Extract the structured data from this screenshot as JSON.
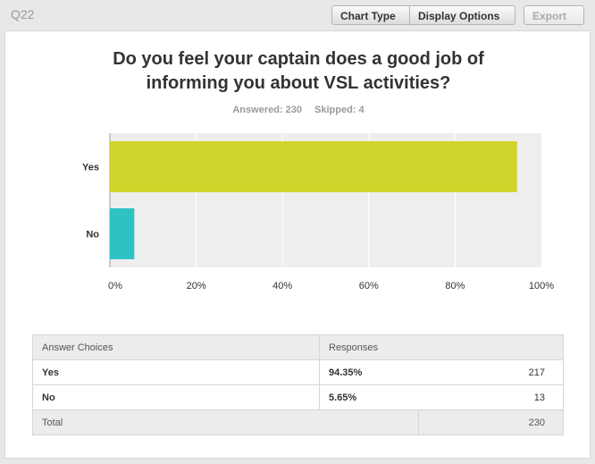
{
  "header": {
    "question_id": "Q22",
    "chart_type_label": "Chart Type",
    "display_options_label": "Display Options",
    "export_label": "Export"
  },
  "question": {
    "title_line1": "Do you feel your captain does a good job of",
    "title_line2": "informing you about VSL activities?",
    "answered": "Answered: 230",
    "skipped": "Skipped: 4"
  },
  "colors": {
    "yes": "#cfd52a",
    "no": "#2fc2c3",
    "plot_bg": "#eeeeee",
    "grid": "#ffffff"
  },
  "chart_data": {
    "type": "bar",
    "orientation": "horizontal",
    "categories": [
      "Yes",
      "No"
    ],
    "values": [
      94.35,
      5.65
    ],
    "xlim": [
      0,
      100
    ],
    "x_ticks": [
      "0%",
      "20%",
      "40%",
      "60%",
      "80%",
      "100%"
    ],
    "grid": true
  },
  "table": {
    "headers": [
      "Answer Choices",
      "Responses"
    ],
    "rows": [
      {
        "choice": "Yes",
        "percent": "94.35%",
        "count": "217"
      },
      {
        "choice": "No",
        "percent": "5.65%",
        "count": "13"
      }
    ],
    "total_label": "Total",
    "total_count": "230"
  }
}
